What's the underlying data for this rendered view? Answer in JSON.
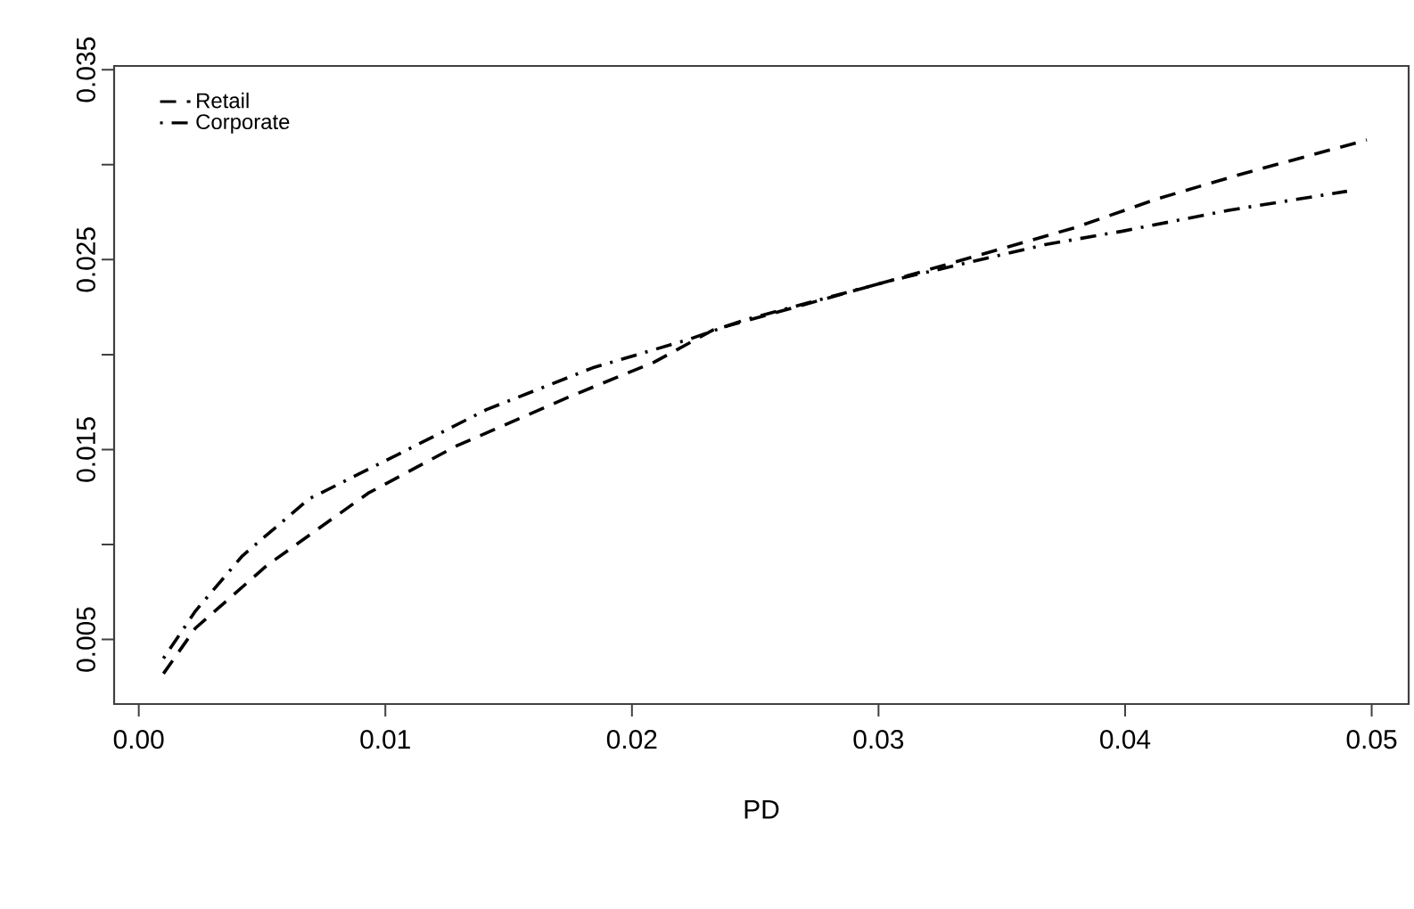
{
  "chart_data": {
    "type": "line",
    "xlabel": "PD",
    "xlim": [
      -0.001,
      0.0515
    ],
    "ylim": [
      0.0016,
      0.0352
    ],
    "xticks": [
      {
        "value": 0,
        "label": "0.00"
      },
      {
        "value": 0.01,
        "label": "0.01"
      },
      {
        "value": 0.02,
        "label": "0.02"
      },
      {
        "value": 0.03,
        "label": "0.03"
      },
      {
        "value": 0.04,
        "label": "0.04"
      },
      {
        "value": 0.05,
        "label": "0.05"
      }
    ],
    "yticks": [
      {
        "value": 0.005,
        "label": "0.005"
      },
      {
        "value": 0.01,
        "label": null
      },
      {
        "value": 0.015,
        "label": "0.015"
      },
      {
        "value": 0.02,
        "label": null
      },
      {
        "value": 0.025,
        "label": "0.025"
      },
      {
        "value": 0.03,
        "label": null
      },
      {
        "value": 0.035,
        "label": "0.035"
      }
    ],
    "legend": "top left",
    "grid": false,
    "series": [
      {
        "name": "Retail",
        "color": "#000000",
        "line_style": "dashed",
        "x": [
          0.001,
          0.0023,
          0.0052,
          0.0093,
          0.0129,
          0.0175,
          0.0209,
          0.0233,
          0.0305,
          0.038,
          0.0413,
          0.0447,
          0.0498
        ],
        "values": [
          0.0032,
          0.0056,
          0.0089,
          0.0127,
          0.0152,
          0.0178,
          0.0196,
          0.0213,
          0.0239,
          0.0267,
          0.0282,
          0.0295,
          0.0313
        ]
      },
      {
        "name": "Corporate",
        "color": "#000000",
        "line_style": "dashdot",
        "x": [
          0.001,
          0.0023,
          0.0042,
          0.0069,
          0.0103,
          0.0141,
          0.0184,
          0.0223,
          0.0245,
          0.0305,
          0.0368,
          0.0399,
          0.0442,
          0.049
        ],
        "values": [
          0.004,
          0.0065,
          0.0094,
          0.0124,
          0.0146,
          0.0171,
          0.0193,
          0.0208,
          0.0218,
          0.0239,
          0.0258,
          0.0265,
          0.0276,
          0.0286
        ]
      }
    ]
  }
}
